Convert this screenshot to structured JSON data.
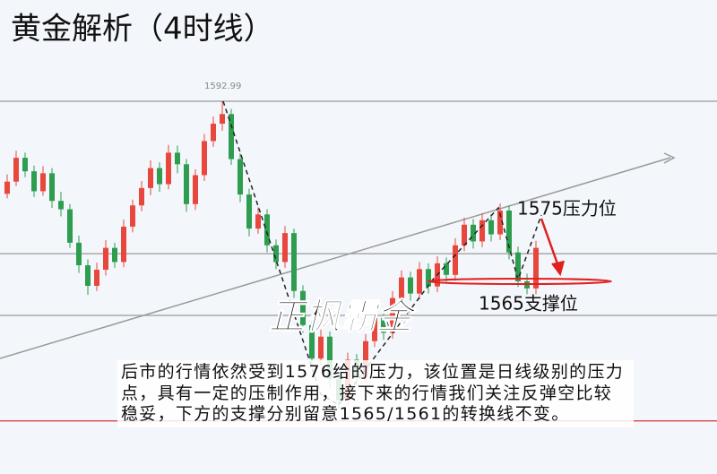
{
  "chart_data": {
    "type": "candlestick",
    "title": "黄金解析（4时线）",
    "up_color": "#e8473e",
    "down_color": "#2e9d4f",
    "ylim": [
      1535.05,
      1608.73
    ],
    "open": [
      1578.6,
      1580.5,
      1584.2,
      1582.1,
      1579.0,
      1581.8,
      1577.5,
      1576.2,
      1571.0,
      1567.5,
      1564.3,
      1566.8,
      1570.2,
      1568.0,
      1573.5,
      1576.8,
      1579.5,
      1582.6,
      1580.1,
      1585.0,
      1583.2,
      1577.0,
      1581.5,
      1586.8,
      1589.5,
      1591.0,
      1584.0,
      1578.5,
      1573.2,
      1575.4,
      1570.6,
      1568.0,
      1572.5,
      1563.5,
      1558.2,
      1553.0,
      1556.4,
      1549.8,
      1546.5,
      1552.8,
      1550.1,
      1555.7,
      1559.3,
      1557.0,
      1562.4,
      1565.6,
      1563.1,
      1566.9,
      1564.2,
      1567.8,
      1566.0,
      1570.6,
      1573.8,
      1571.2,
      1574.5,
      1572.3,
      1576.0,
      1569.5,
      1565.0,
      1563.9
    ],
    "high": [
      1581.6,
      1585.3,
      1585.0,
      1583.0,
      1582.9,
      1582.6,
      1578.9,
      1577.0,
      1572.1,
      1568.4,
      1567.9,
      1571.4,
      1571.0,
      1574.6,
      1577.7,
      1580.6,
      1583.8,
      1583.5,
      1586.2,
      1586.1,
      1584.0,
      1582.4,
      1587.9,
      1590.6,
      1592.99,
      1591.8,
      1584.9,
      1579.4,
      1576.5,
      1576.2,
      1571.5,
      1573.6,
      1573.2,
      1564.4,
      1559.1,
      1557.5,
      1557.2,
      1550.7,
      1553.9,
      1553.7,
      1556.8,
      1560.4,
      1560.2,
      1563.5,
      1566.7,
      1566.5,
      1568.0,
      1567.8,
      1568.9,
      1568.7,
      1571.7,
      1574.9,
      1574.7,
      1575.6,
      1575.4,
      1577.1,
      1576.8,
      1570.4,
      1566.2,
      1571.3
    ],
    "low": [
      1577.9,
      1579.8,
      1581.2,
      1578.1,
      1578.3,
      1576.4,
      1575.1,
      1570.2,
      1566.3,
      1562.9,
      1563.5,
      1565.9,
      1567.1,
      1567.2,
      1572.6,
      1575.9,
      1578.4,
      1578.9,
      1579.3,
      1581.8,
      1575.8,
      1576.1,
      1580.6,
      1585.9,
      1588.4,
      1583.1,
      1577.3,
      1572.0,
      1572.4,
      1569.5,
      1566.9,
      1567.1,
      1562.4,
      1557.0,
      1551.8,
      1551.9,
      1548.5,
      1545.3,
      1545.6,
      1548.9,
      1549.2,
      1554.8,
      1555.9,
      1556.1,
      1561.5,
      1562.0,
      1562.2,
      1563.1,
      1563.3,
      1564.9,
      1565.1,
      1569.7,
      1570.1,
      1570.3,
      1571.2,
      1571.4,
      1568.4,
      1564.1,
      1563.0,
      1563.0
    ],
    "close": [
      1580.5,
      1584.2,
      1582.1,
      1579.0,
      1581.8,
      1577.5,
      1576.2,
      1571.0,
      1567.5,
      1564.3,
      1566.8,
      1570.2,
      1568.0,
      1573.5,
      1576.8,
      1579.5,
      1582.6,
      1580.1,
      1585.0,
      1583.2,
      1577.0,
      1581.5,
      1586.8,
      1589.5,
      1591.0,
      1584.0,
      1578.5,
      1573.2,
      1575.4,
      1570.6,
      1568.0,
      1572.5,
      1563.5,
      1558.2,
      1553.0,
      1556.4,
      1549.8,
      1546.5,
      1552.8,
      1550.1,
      1555.7,
      1559.3,
      1557.0,
      1562.4,
      1565.6,
      1563.1,
      1566.9,
      1564.2,
      1567.8,
      1566.0,
      1570.6,
      1573.8,
      1571.2,
      1574.5,
      1572.3,
      1576.0,
      1569.5,
      1565.0,
      1563.9,
      1570.2
    ],
    "peak_index": 24,
    "levels": [
      {
        "value": 1592.99,
        "color": "#999999"
      },
      {
        "value": 1569.3,
        "color": "#999999"
      },
      {
        "value": 1559.7,
        "color": "#999999"
      },
      {
        "value": 1543.3,
        "color": "#d9342b"
      }
    ],
    "annotations": {
      "resistance": "1575压力位",
      "support": "1565支撑位",
      "watermark": "正枫霸金",
      "commentary": "后市的行情依然受到1576给的压力，该位置是日线级别的压力点，具有一定的压制作用，接下来的行情我们关注反弹空比较稳妥，下方的支撑分别留意1565/1561的转换线不变。"
    }
  }
}
